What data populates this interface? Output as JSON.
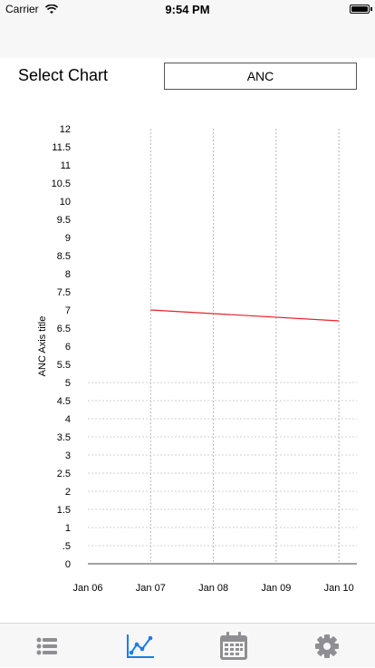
{
  "status_bar": {
    "carrier": "Carrier",
    "time": "9:54 PM"
  },
  "selector": {
    "label": "Select Chart",
    "value": "ANC"
  },
  "chart_data": {
    "type": "line",
    "x": [
      "Jan 06",
      "Jan 07",
      "Jan 08",
      "Jan 09",
      "Jan 10"
    ],
    "ylabel": "ANC Axis title",
    "yticks": [
      "0",
      ".5",
      "1",
      "1.5",
      "2",
      "2.5",
      "3",
      "3.5",
      "4",
      "4.5",
      "5",
      "5.5",
      "6",
      "6.5",
      "7",
      "7.5",
      "8",
      "8.5",
      "9",
      "9.5",
      "10",
      "10.5",
      "11",
      "11.5",
      "12"
    ],
    "ylim": [
      0,
      12
    ],
    "series": [
      {
        "points": [
          {
            "x": "Jan 07",
            "y": 7.0
          },
          {
            "x": "Jan 10",
            "y": 6.7
          }
        ],
        "color": "#e8212b"
      }
    ]
  },
  "tab_bar": {
    "tabs": [
      {
        "icon": "list-icon",
        "active": false
      },
      {
        "icon": "chart-icon",
        "active": true
      },
      {
        "icon": "calendar-icon",
        "active": false
      },
      {
        "icon": "gear-icon",
        "active": false
      }
    ],
    "active_color": "#1a7ee6",
    "inactive_color": "#8e8e93"
  }
}
